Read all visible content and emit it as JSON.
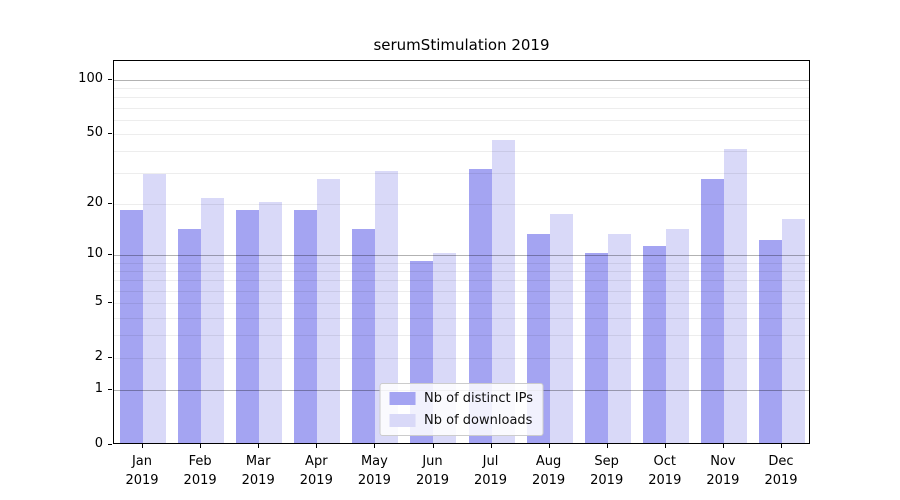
{
  "title": "serumStimulation 2019",
  "chart_data": {
    "type": "bar",
    "title": "serumStimulation 2019",
    "categories": [
      "Jan 2019",
      "Feb 2019",
      "Mar 2019",
      "Apr 2019",
      "May 2019",
      "Jun 2019",
      "Jul 2019",
      "Aug 2019",
      "Sep 2019",
      "Oct 2019",
      "Nov 2019",
      "Dec 2019"
    ],
    "series": [
      {
        "name": "Nb of distinct IPs",
        "color": "#a4a4f2",
        "values": [
          18,
          14,
          18,
          18,
          14,
          9,
          31,
          13,
          10,
          11,
          27,
          12
        ]
      },
      {
        "name": "Nb of downloads",
        "color": "#d9d9f8",
        "values": [
          29,
          21,
          20,
          27,
          30,
          10,
          45,
          17,
          13,
          14,
          40,
          16
        ]
      }
    ],
    "xlabel": "",
    "ylabel": "",
    "yscale": "log1p",
    "ylim": [
      0,
      127
    ],
    "y_ticks": [
      0,
      1,
      2,
      5,
      10,
      20,
      50,
      100
    ],
    "y_major_gridlines": [
      1,
      10,
      100
    ],
    "y_minor_gridlines": [
      2,
      3,
      4,
      5,
      6,
      7,
      8,
      9,
      20,
      30,
      40,
      50,
      60,
      70,
      80,
      90
    ],
    "grid": true,
    "legend_position": "lower center",
    "colors": {
      "axis": "#000000",
      "grid_major": "#b3b3b3",
      "grid_minor": "#ececec"
    }
  }
}
